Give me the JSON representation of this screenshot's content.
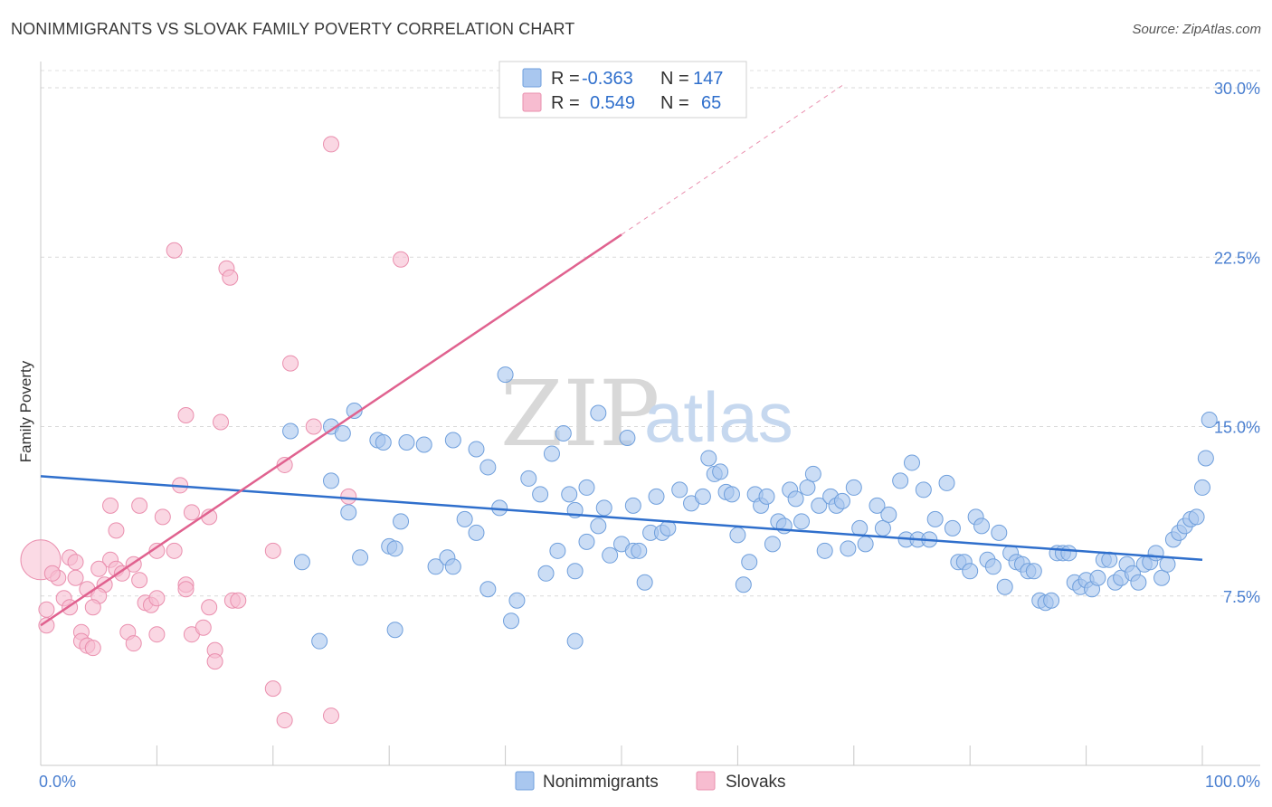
{
  "title": "NONIMMIGRANTS VS SLOVAK FAMILY POVERTY CORRELATION CHART",
  "source": "Source: ZipAtlas.com",
  "watermark": {
    "zip": "ZIP",
    "atlas": "atlas"
  },
  "colors": {
    "nonimmigrants_fill": "#a9c7ef",
    "nonimmigrants_stroke": "#6f9fdc",
    "nonimmigrants_line": "#2f6fcc",
    "slovaks_fill": "#f7bcd0",
    "slovaks_stroke": "#ea8fae",
    "slovaks_line": "#e0628f",
    "tick_text": "#4a7fd0"
  },
  "legend": {
    "rows": [
      {
        "r_label": "R =",
        "r_value": "-0.363",
        "n_label": "N =",
        "n_value": "147"
      },
      {
        "r_label": "R =",
        "r_value": "0.549",
        "n_label": "N =",
        "n_value": "65"
      }
    ]
  },
  "bottom_legend": [
    "Nonimmigrants",
    "Slovaks"
  ],
  "chart_data": {
    "type": "scatter",
    "title": "NONIMMIGRANTS VS SLOVAK FAMILY POVERTY CORRELATION CHART",
    "xlabel": "",
    "ylabel": "Family Poverty",
    "xlim": [
      0,
      100
    ],
    "ylim": [
      0,
      30.5
    ],
    "x_tick_labels": [
      "0.0%",
      "100.0%"
    ],
    "y_ticks": [
      7.5,
      15.0,
      22.5,
      30.0
    ],
    "y_tick_labels": [
      "7.5%",
      "15.0%",
      "22.5%",
      "30.0%"
    ],
    "grid": "horizontal dashed",
    "legend_position": "top-center",
    "series": [
      {
        "name": "Nonimmigrants",
        "trend": {
          "x": [
            0,
            100
          ],
          "y": [
            12.8,
            9.1
          ]
        },
        "points": [
          [
            21.5,
            14.8
          ],
          [
            25,
            15
          ],
          [
            26,
            14.7
          ],
          [
            27,
            15.7
          ],
          [
            29,
            14.4
          ],
          [
            29.5,
            14.3
          ],
          [
            31.5,
            14.3
          ],
          [
            33,
            14.2
          ],
          [
            35.5,
            14.4
          ],
          [
            37.5,
            14
          ],
          [
            38.5,
            13.2
          ],
          [
            40,
            17.3
          ],
          [
            42,
            12.7
          ],
          [
            43,
            12
          ],
          [
            44,
            13.8
          ],
          [
            45,
            14.7
          ],
          [
            45.5,
            12
          ],
          [
            46,
            11.3
          ],
          [
            47,
            12.3
          ],
          [
            48,
            15.6
          ],
          [
            48.5,
            11.4
          ],
          [
            50.5,
            14.5
          ],
          [
            51,
            11.5
          ],
          [
            25,
            12.6
          ],
          [
            26.5,
            11.2
          ],
          [
            27.5,
            9.2
          ],
          [
            30,
            9.7
          ],
          [
            30.5,
            9.6
          ],
          [
            31,
            10.8
          ],
          [
            34,
            8.8
          ],
          [
            35,
            9.2
          ],
          [
            35.5,
            8.8
          ],
          [
            36.5,
            10.9
          ],
          [
            37.5,
            10.3
          ],
          [
            38.5,
            7.8
          ],
          [
            39.5,
            11.4
          ],
          [
            40.5,
            6.4
          ],
          [
            41,
            7.3
          ],
          [
            43.5,
            8.5
          ],
          [
            44.5,
            9.5
          ],
          [
            46,
            8.6
          ],
          [
            47,
            9.9
          ],
          [
            48,
            10.6
          ],
          [
            49,
            9.3
          ],
          [
            50,
            9.8
          ],
          [
            51,
            9.5
          ],
          [
            51.5,
            9.5
          ],
          [
            52,
            8.1
          ],
          [
            52.5,
            10.3
          ],
          [
            53,
            11.9
          ],
          [
            53.5,
            10.3
          ],
          [
            54,
            10.5
          ],
          [
            55,
            12.2
          ],
          [
            56,
            11.6
          ],
          [
            57,
            11.9
          ],
          [
            57.5,
            13.6
          ],
          [
            58,
            12.9
          ],
          [
            58.5,
            13.0
          ],
          [
            59,
            12.1
          ],
          [
            59.5,
            12.0
          ],
          [
            60,
            10.2
          ],
          [
            60.5,
            8.0
          ],
          [
            61,
            9.0
          ],
          [
            61.5,
            12.0
          ],
          [
            62,
            11.5
          ],
          [
            62.5,
            11.9
          ],
          [
            63,
            9.8
          ],
          [
            63.5,
            10.8
          ],
          [
            64,
            10.6
          ],
          [
            64.5,
            12.2
          ],
          [
            65,
            11.8
          ],
          [
            65.5,
            10.8
          ],
          [
            66,
            12.3
          ],
          [
            66.5,
            12.9
          ],
          [
            67,
            11.5
          ],
          [
            67.5,
            9.5
          ],
          [
            68,
            11.9
          ],
          [
            68.5,
            11.5
          ],
          [
            69,
            11.7
          ],
          [
            69.5,
            9.6
          ],
          [
            70,
            12.3
          ],
          [
            70.5,
            10.5
          ],
          [
            71,
            9.8
          ],
          [
            72,
            11.5
          ],
          [
            72.5,
            10.5
          ],
          [
            73,
            11.1
          ],
          [
            74,
            12.6
          ],
          [
            74.5,
            10.0
          ],
          [
            75,
            13.4
          ],
          [
            75.5,
            10.0
          ],
          [
            76,
            12.2
          ],
          [
            76.5,
            10.0
          ],
          [
            77,
            10.9
          ],
          [
            78,
            12.5
          ],
          [
            78.5,
            10.5
          ],
          [
            79,
            9.0
          ],
          [
            79.5,
            9.0
          ],
          [
            80,
            8.6
          ],
          [
            80.5,
            11.0
          ],
          [
            81,
            10.6
          ],
          [
            81.5,
            9.1
          ],
          [
            82,
            8.8
          ],
          [
            82.5,
            10.3
          ],
          [
            83,
            7.9
          ],
          [
            83.5,
            9.4
          ],
          [
            84,
            9.0
          ],
          [
            84.5,
            8.9
          ],
          [
            85,
            8.6
          ],
          [
            85.5,
            8.6
          ],
          [
            86,
            7.3
          ],
          [
            86.5,
            7.2
          ],
          [
            87,
            7.3
          ],
          [
            87.5,
            9.4
          ],
          [
            88,
            9.4
          ],
          [
            88.5,
            9.4
          ],
          [
            89,
            8.1
          ],
          [
            89.5,
            7.9
          ],
          [
            90,
            8.2
          ],
          [
            90.5,
            7.8
          ],
          [
            91,
            8.3
          ],
          [
            91.5,
            9.1
          ],
          [
            92,
            9.1
          ],
          [
            92.5,
            8.1
          ],
          [
            93,
            8.3
          ],
          [
            93.5,
            8.9
          ],
          [
            94,
            8.5
          ],
          [
            94.5,
            8.1
          ],
          [
            95,
            8.9
          ],
          [
            95.5,
            9.0
          ],
          [
            96,
            9.4
          ],
          [
            96.5,
            8.3
          ],
          [
            97,
            8.9
          ],
          [
            97.5,
            10.0
          ],
          [
            98,
            10.3
          ],
          [
            98.5,
            10.6
          ],
          [
            99,
            10.9
          ],
          [
            99.5,
            11.0
          ],
          [
            100,
            12.3
          ],
          [
            100.3,
            13.6
          ],
          [
            100.6,
            15.3
          ],
          [
            24,
            5.5
          ],
          [
            30.5,
            6.0
          ],
          [
            46,
            5.5
          ],
          [
            22.5,
            9.0
          ]
        ]
      },
      {
        "name": "Slovaks",
        "trend": {
          "x": [
            0,
            50
          ],
          "y": [
            6.2,
            23.5
          ]
        },
        "trend_extension": {
          "x": [
            50,
            69
          ],
          "y": [
            23.5,
            30.1
          ]
        },
        "points": [
          [
            25,
            27.5
          ],
          [
            11.5,
            22.8
          ],
          [
            16,
            22
          ],
          [
            16.3,
            21.6
          ],
          [
            31,
            22.4
          ],
          [
            21.5,
            17.8
          ],
          [
            12.5,
            15.5
          ],
          [
            15.5,
            15.2
          ],
          [
            23.5,
            15.0
          ],
          [
            21,
            13.3
          ],
          [
            12,
            12.4
          ],
          [
            26.5,
            11.9
          ],
          [
            6,
            11.5
          ],
          [
            8.5,
            11.5
          ],
          [
            13,
            11.2
          ],
          [
            14.5,
            11.0
          ],
          [
            10.5,
            11.0
          ],
          [
            6.5,
            10.4
          ],
          [
            2.5,
            9.2
          ],
          [
            6,
            9.1
          ],
          [
            8,
            8.9
          ],
          [
            3,
            9.0
          ],
          [
            10,
            9.5
          ],
          [
            11.5,
            9.5
          ],
          [
            20,
            9.5
          ],
          [
            1.5,
            8.3
          ],
          [
            1,
            8.5
          ],
          [
            3,
            8.3
          ],
          [
            5,
            8.7
          ],
          [
            6.5,
            8.7
          ],
          [
            7,
            8.5
          ],
          [
            8.5,
            8.2
          ],
          [
            4,
            7.8
          ],
          [
            5.5,
            8.0
          ],
          [
            12.5,
            8.0
          ],
          [
            5,
            7.5
          ],
          [
            2,
            7.4
          ],
          [
            0.5,
            6.9
          ],
          [
            2.5,
            7.0
          ],
          [
            4.5,
            7.0
          ],
          [
            9,
            7.2
          ],
          [
            9.5,
            7.1
          ],
          [
            10,
            7.4
          ],
          [
            12.5,
            7.8
          ],
          [
            16.5,
            7.3
          ],
          [
            17,
            7.3
          ],
          [
            14.5,
            7.0
          ],
          [
            0.5,
            6.2
          ],
          [
            3.5,
            5.9
          ],
          [
            7.5,
            5.9
          ],
          [
            10,
            5.8
          ],
          [
            13,
            5.8
          ],
          [
            14,
            6.1
          ],
          [
            3.5,
            5.5
          ],
          [
            8,
            5.4
          ],
          [
            4,
            5.3
          ],
          [
            4.5,
            5.2
          ],
          [
            15,
            5.1
          ],
          [
            15,
            4.6
          ],
          [
            20,
            3.4
          ],
          [
            21,
            2.0
          ],
          [
            25,
            2.2
          ]
        ],
        "large_point": [
          0,
          9.1
        ]
      }
    ]
  }
}
